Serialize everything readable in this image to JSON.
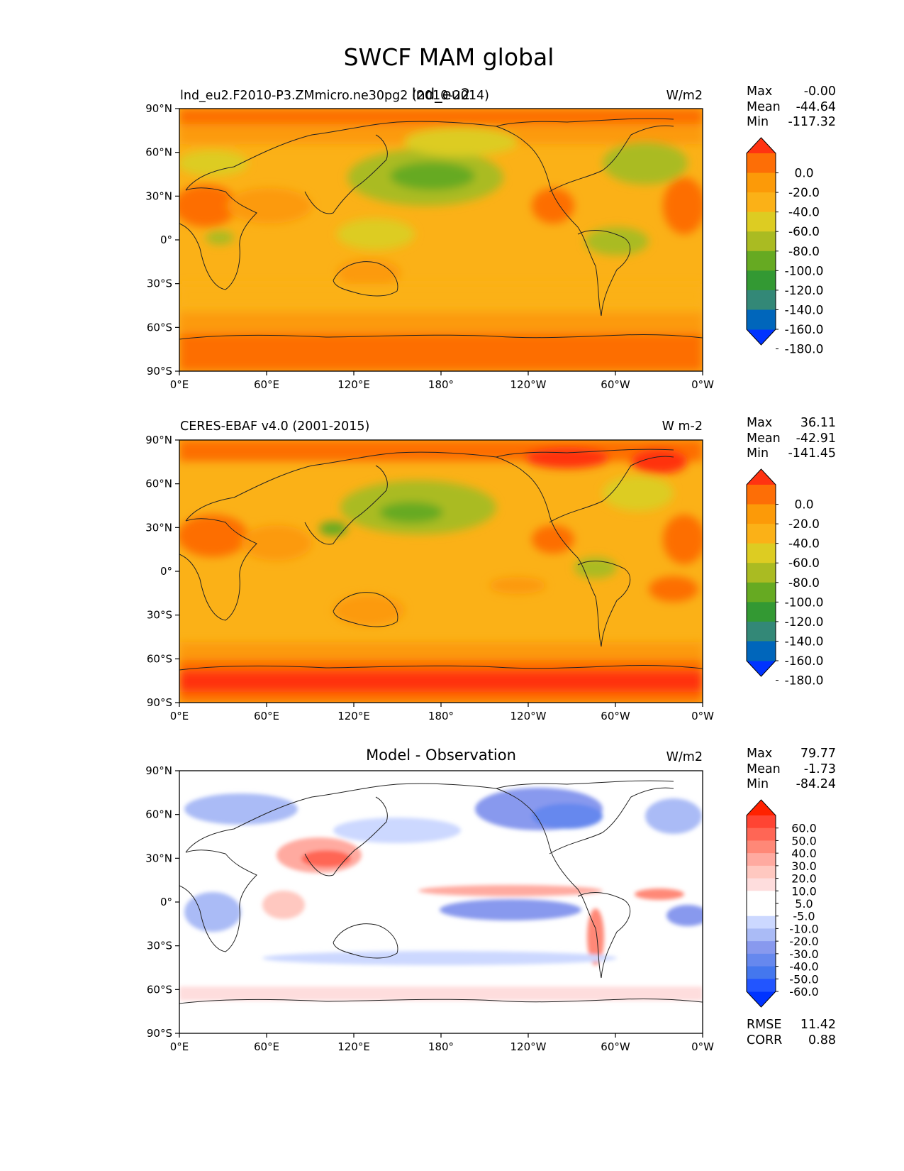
{
  "figure": {
    "title": "SWCF MAM global"
  },
  "colors": {
    "main_levels": [
      "#0033ff",
      "#0066bb",
      "#338877",
      "#339933",
      "#66aa22",
      "#aabb22",
      "#ddcc22",
      "#fbb117",
      "#fc9a08",
      "#fd6e06",
      "#ff3311"
    ],
    "diff_levels": [
      "#0033ff",
      "#2255ff",
      "#4477ee",
      "#6688ee",
      "#8899ee",
      "#aabbf6",
      "#ccd8ff",
      "#ffffff",
      "#ffffff",
      "#fedddd",
      "#ffc8c0",
      "#ffaaa0",
      "#ff8877",
      "#ff6655",
      "#ff4433",
      "#ff2200"
    ]
  },
  "chart_data": [
    {
      "type": "heatmap",
      "title_left": "lnd_eu2.F2010-P3.ZMmicro.ne30pg2 (2010-2014)",
      "title_center": "lnd_eu2",
      "units": "W/m2",
      "stats": [
        {
          "label": "Max",
          "value": "-0.00"
        },
        {
          "label": "Mean",
          "value": "-44.64"
        },
        {
          "label": "Min",
          "value": "-117.32"
        }
      ],
      "colorbar_labels": [
        "0.0",
        "-20.0",
        "-40.0",
        "-60.0",
        "-80.0",
        "-100.0",
        "-120.0",
        "-140.0",
        "-160.0",
        "-180.0"
      ],
      "xticks": [
        "0°E",
        "60°E",
        "120°E",
        "180°",
        "120°W",
        "60°W",
        "0°W"
      ],
      "yticks": [
        "90°N",
        "60°N",
        "30°N",
        "0°",
        "30°S",
        "60°S",
        "90°S"
      ]
    },
    {
      "type": "heatmap",
      "title_left": "CERES-EBAF v4.0 (2001-2015)",
      "title_center": "",
      "units": "W m-2",
      "stats": [
        {
          "label": "Max",
          "value": "36.11"
        },
        {
          "label": "Mean",
          "value": "-42.91"
        },
        {
          "label": "Min",
          "value": "-141.45"
        }
      ],
      "colorbar_labels": [
        "0.0",
        "-20.0",
        "-40.0",
        "-60.0",
        "-80.0",
        "-100.0",
        "-120.0",
        "-140.0",
        "-160.0",
        "-180.0"
      ],
      "xticks": [
        "0°E",
        "60°E",
        "120°E",
        "180°",
        "120°W",
        "60°W",
        "0°W"
      ],
      "yticks": [
        "90°N",
        "60°N",
        "30°N",
        "0°",
        "30°S",
        "60°S",
        "90°S"
      ]
    },
    {
      "type": "heatmap",
      "title_left": "",
      "title_center": "Model - Observation",
      "units": "W/m2",
      "stats": [
        {
          "label": "Max",
          "value": "79.77"
        },
        {
          "label": "Mean",
          "value": "-1.73"
        },
        {
          "label": "Min",
          "value": "-84.24"
        }
      ],
      "colorbar_labels": [
        "60.0",
        "50.0",
        "40.0",
        "30.0",
        "20.0",
        "10.0",
        "5.0",
        "-5.0",
        "-10.0",
        "-20.0",
        "-30.0",
        "-40.0",
        "-50.0",
        "-60.0"
      ],
      "xticks": [
        "0°E",
        "60°E",
        "120°E",
        "180°",
        "120°W",
        "60°W",
        "0°W"
      ],
      "yticks": [
        "90°N",
        "60°N",
        "30°N",
        "0°",
        "30°S",
        "60°S",
        "90°S"
      ],
      "metrics": [
        {
          "label": "RMSE",
          "value": "11.42"
        },
        {
          "label": "CORR",
          "value": "0.88"
        }
      ]
    }
  ]
}
